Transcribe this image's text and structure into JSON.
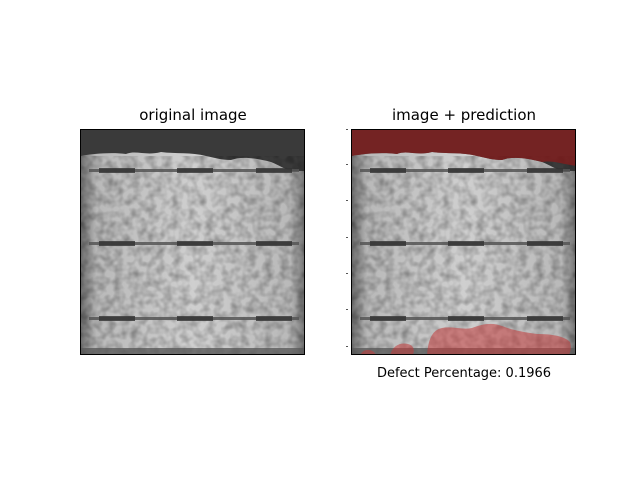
{
  "figure": {
    "left_panel": {
      "title": "original image"
    },
    "right_panel": {
      "title": "image + prediction",
      "caption": "Defect Percentage: 0.1966"
    },
    "colors": {
      "cell_light": "#c9c9c9",
      "cell_dark": "#3a3a3a",
      "busbar": "#555555",
      "overlay": "#a01818"
    }
  }
}
